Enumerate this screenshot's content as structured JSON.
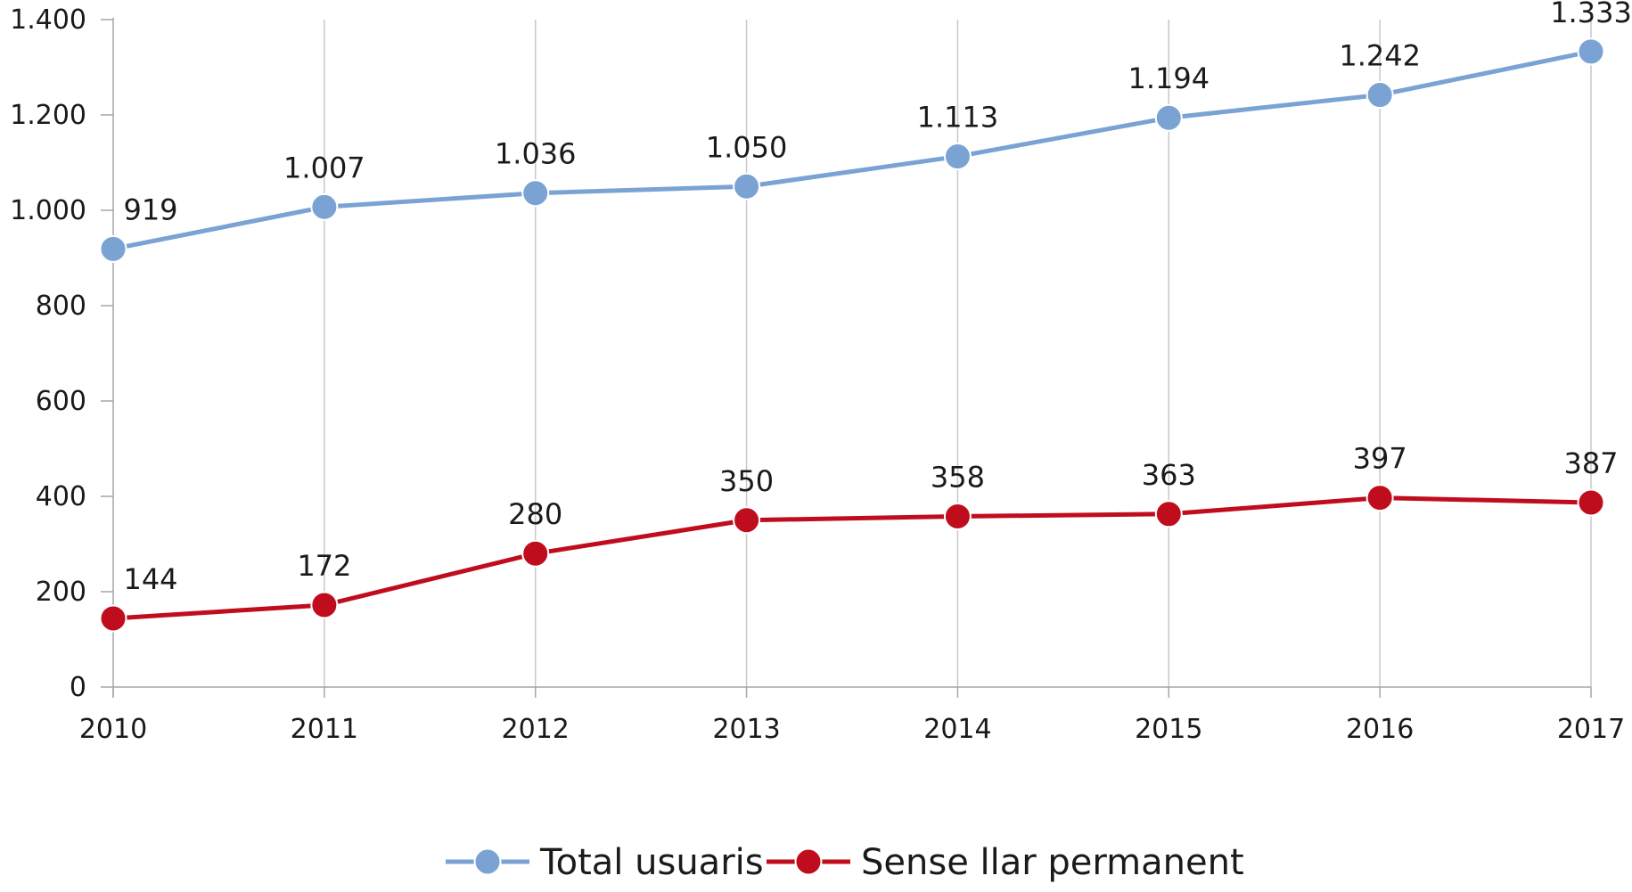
{
  "chart_data": {
    "type": "line",
    "title": "",
    "xlabel": "",
    "ylabel": "",
    "x": [
      "2010",
      "2011",
      "2012",
      "2013",
      "2014",
      "2015",
      "2016",
      "2017"
    ],
    "ylim": [
      0,
      1400
    ],
    "y_ticks": [
      0,
      200,
      400,
      600,
      800,
      1000,
      1200,
      1400
    ],
    "y_tick_labels": [
      "0",
      "200",
      "400",
      "600",
      "800",
      "1.000",
      "1.200",
      "1.400"
    ],
    "grid": "vertical",
    "legend_position": "bottom-center",
    "series": [
      {
        "name": "Total usuaris",
        "color": "#7aa3d3",
        "values": [
          919,
          1007,
          1036,
          1050,
          1113,
          1194,
          1242,
          1333
        ],
        "labels": [
          "919",
          "1.007",
          "1.036",
          "1.050",
          "1.113",
          "1.194",
          "1.242",
          "1.333"
        ]
      },
      {
        "name": "Sense llar permanent",
        "color": "#c00d1e",
        "values": [
          144,
          172,
          280,
          350,
          358,
          363,
          397,
          387
        ],
        "labels": [
          "144",
          "172",
          "280",
          "350",
          "358",
          "363",
          "397",
          "387"
        ]
      }
    ]
  }
}
